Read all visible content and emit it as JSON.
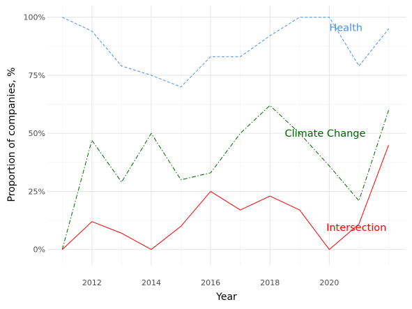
{
  "chart_data": {
    "type": "line",
    "xlabel": "Year",
    "ylabel": "Proportion of companies, %",
    "xlim": [
      2010.5,
      2022.6
    ],
    "ylim": [
      -0.07,
      1.05
    ],
    "x_ticks": [
      2012,
      2014,
      2016,
      2018,
      2020
    ],
    "y_ticks": [
      {
        "value": 0,
        "label": "0%"
      },
      {
        "value": 0.25,
        "label": "25%"
      },
      {
        "value": 0.5,
        "label": "50%"
      },
      {
        "value": 0.75,
        "label": "75%"
      },
      {
        "value": 1.0,
        "label": "100%"
      }
    ],
    "grid": true,
    "x": [
      2011,
      2012,
      2013,
      2014,
      2015,
      2016,
      2017,
      2018,
      2019,
      2020,
      2021,
      2022
    ],
    "series": [
      {
        "name": "Health",
        "color": "#4a90e2",
        "line_style": "dashed",
        "values": [
          1.0,
          0.94,
          0.79,
          0.75,
          0.7,
          0.83,
          0.83,
          0.92,
          1.0,
          1.0,
          0.79,
          0.95
        ],
        "label_at": [
          2020.0,
          0.955
        ]
      },
      {
        "name": "Climate Change",
        "color": "#006400",
        "line_style": "dashdot",
        "values": [
          0.0,
          0.47,
          0.29,
          0.5,
          0.3,
          0.33,
          0.5,
          0.62,
          0.5,
          0.36,
          0.21,
          0.6
        ],
        "label_at": [
          2018.5,
          0.5
        ]
      },
      {
        "name": "Intersection",
        "color": "#ff0000",
        "line_style": "solid",
        "values": [
          0.0,
          0.12,
          0.07,
          0.0,
          0.1,
          0.25,
          0.17,
          0.23,
          0.17,
          0.0,
          0.11,
          0.45
        ],
        "label_at": [
          2019.9,
          0.095
        ]
      }
    ]
  }
}
